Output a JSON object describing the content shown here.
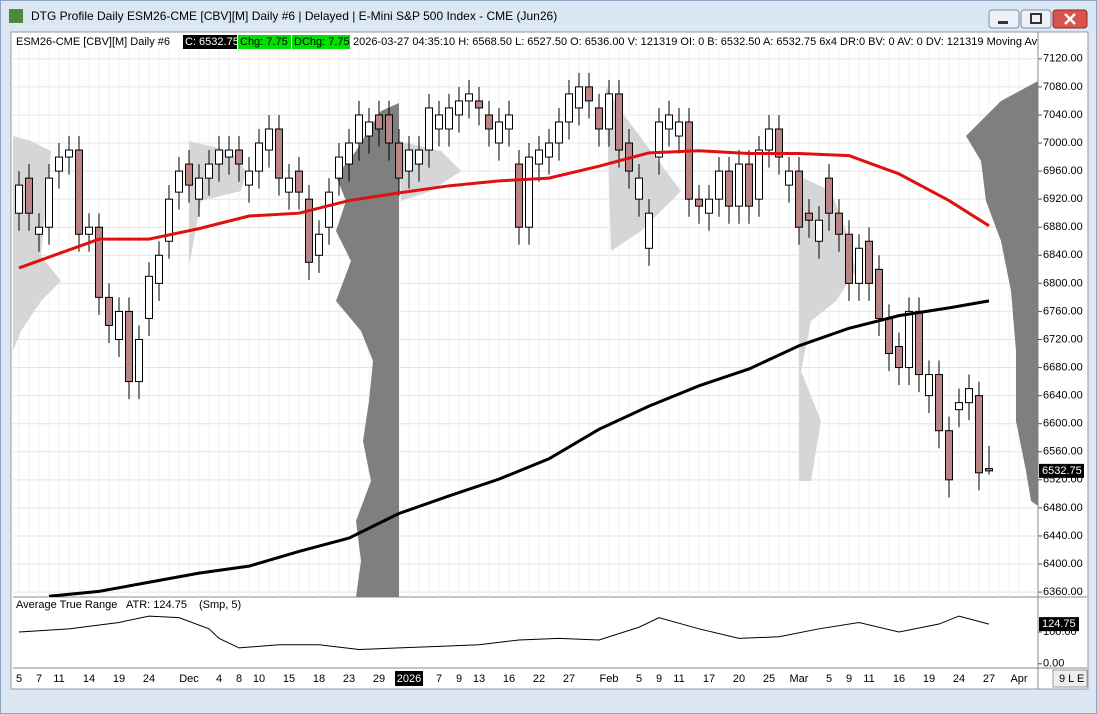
{
  "window": {
    "title": "DTG Profile Daily ESM26-CME [CBV][M]  Daily #6 | Delayed | E-Mini S&P 500 Index - CME (Jun26)",
    "status": "9 L E"
  },
  "header": {
    "symbol": "ESM26-CME [CBV][M]  Daily #6",
    "close": "C: 6532.75",
    "chg": "Chg: 7.75",
    "dchg": "DChg: 7.75",
    "details": "2026-03-27 04:35:10 H: 6568.50 L: 6527.50 O: 6536.00 V: 121319 OI: 0 B: 6532.50 A: 6532.75 6x4 DR:0 BV: 0 AV: 0 DV: 121319 Moving Av"
  },
  "chart_data": {
    "type": "candlestick",
    "categories": [
      "5",
      null,
      "7",
      null,
      "11",
      null,
      null,
      "14",
      null,
      null,
      "19",
      null,
      null,
      "24",
      null,
      null,
      null,
      "Dec",
      null,
      null,
      "4",
      null,
      "8",
      null,
      "10",
      null,
      null,
      "15",
      null,
      null,
      "18",
      null,
      null,
      "23",
      null,
      null,
      "29",
      null,
      null,
      "2026",
      null,
      null,
      "7",
      null,
      "9",
      null,
      "13",
      null,
      null,
      "16",
      null,
      null,
      "22",
      null,
      null,
      "27",
      null,
      null,
      null,
      "Feb",
      null,
      null,
      "5",
      null,
      "9",
      null,
      "11",
      null,
      null,
      "17",
      null,
      null,
      "20",
      null,
      null,
      "25",
      null,
      null,
      "Mar",
      null,
      null,
      "5",
      null,
      "9",
      null,
      "11",
      null,
      null,
      "16",
      null,
      null,
      "19",
      null,
      null,
      "24",
      null,
      null,
      "27",
      null,
      null,
      "Apr"
    ],
    "open": [
      6900,
      6950,
      6870,
      6880,
      6960,
      6980,
      6990,
      6870,
      6880,
      6780,
      6720,
      6760,
      6660,
      6750,
      6800,
      6860,
      6930,
      6970,
      6920,
      6950,
      6970,
      6980,
      6990,
      6940,
      6960,
      6990,
      7020,
      6930,
      6960,
      6920,
      6840,
      6880,
      6950,
      6970,
      7000,
      7010,
      7040,
      7040,
      7000,
      6960,
      6970,
      6990,
      7020,
      7020,
      7040,
      7060,
      7060,
      7040,
      7000,
      7020,
      6970,
      6880,
      6970,
      6980,
      7000,
      7030,
      7050,
      7080,
      7050,
      7020,
      7070,
      7000,
      6920,
      6850,
      6980,
      7020,
      7010,
      7030,
      6920,
      6900,
      6920,
      6960,
      6910,
      6970,
      6920,
      6990,
      7020,
      6940,
      6960,
      6900,
      6860,
      6950,
      6900,
      6870,
      6800,
      6860,
      6820,
      6750,
      6710,
      6680,
      6760,
      6640,
      6670,
      6590,
      6620,
      6630,
      6640,
      6536,
      null,
      null,
      null
    ],
    "high": [
      6960,
      6970,
      6900,
      6970,
      7000,
      7010,
      7010,
      6900,
      6900,
      6800,
      6780,
      6780,
      6740,
      6830,
      6860,
      6940,
      6980,
      6990,
      6970,
      6990,
      7010,
      7010,
      7010,
      6980,
      7020,
      7040,
      7040,
      6970,
      6980,
      6940,
      6890,
      6950,
      7000,
      7020,
      7060,
      7050,
      7060,
      7060,
      7020,
      7010,
      7010,
      7070,
      7060,
      7070,
      7080,
      7090,
      7080,
      7060,
      7050,
      7060,
      6990,
      7000,
      7010,
      7020,
      7050,
      7090,
      7100,
      7100,
      7070,
      7090,
      7090,
      7020,
      6970,
      6920,
      7050,
      7060,
      7050,
      7050,
      6940,
      6940,
      6980,
      6980,
      6990,
      6990,
      7010,
      7040,
      7040,
      6980,
      6980,
      6920,
      6910,
      6970,
      6920,
      6890,
      6870,
      6880,
      6840,
      6770,
      6730,
      6780,
      6780,
      6690,
      6690,
      6610,
      6650,
      6670,
      6660,
      6568.5,
      null,
      null,
      null
    ],
    "low": [
      6875,
      6875,
      6845,
      6855,
      6935,
      6955,
      6845,
      6845,
      6755,
      6715,
      6695,
      6635,
      6635,
      6725,
      6775,
      6835,
      6905,
      6915,
      6895,
      6925,
      6945,
      6955,
      6945,
      6915,
      6935,
      6965,
      6925,
      6905,
      6905,
      6805,
      6815,
      6855,
      6925,
      6945,
      6975,
      6985,
      6995,
      6975,
      6925,
      6935,
      6945,
      6965,
      6995,
      6995,
      7015,
      7035,
      7025,
      6995,
      6975,
      6995,
      6855,
      6855,
      6945,
      6955,
      6975,
      7005,
      7025,
      7035,
      6995,
      6995,
      6965,
      6935,
      6895,
      6825,
      6955,
      6995,
      6985,
      6895,
      6885,
      6875,
      6895,
      6885,
      6885,
      6885,
      6895,
      6965,
      6955,
      6915,
      6855,
      6865,
      6835,
      6875,
      6845,
      6775,
      6775,
      6775,
      6725,
      6675,
      6655,
      6655,
      6645,
      6615,
      6565,
      6495,
      6595,
      6605,
      6505,
      6527.5,
      null,
      null,
      null
    ],
    "close": [
      6940,
      6900,
      6880,
      6950,
      6980,
      6990,
      6870,
      6880,
      6780,
      6740,
      6760,
      6660,
      6720,
      6810,
      6840,
      6920,
      6960,
      6940,
      6950,
      6970,
      6990,
      6990,
      6970,
      6960,
      7000,
      7020,
      6950,
      6950,
      6930,
      6830,
      6870,
      6930,
      6980,
      7000,
      7040,
      7030,
      7020,
      7000,
      6950,
      6990,
      6990,
      7050,
      7040,
      7050,
      7060,
      7070,
      7050,
      7020,
      7030,
      7040,
      6880,
      6980,
      6990,
      7000,
      7030,
      7070,
      7080,
      7060,
      7020,
      7070,
      6990,
      6960,
      6950,
      6900,
      7030,
      7040,
      7030,
      6920,
      6910,
      6920,
      6960,
      6910,
      6970,
      6910,
      6990,
      7020,
      6980,
      6960,
      6880,
      6890,
      6890,
      6900,
      6870,
      6800,
      6850,
      6800,
      6750,
      6700,
      6680,
      6760,
      6670,
      6670,
      6590,
      6520,
      6630,
      6650,
      6530,
      6532.75,
      null,
      null,
      null
    ],
    "up_color": "#ffffff",
    "down_color": "#b98585",
    "series": [
      {
        "color": "#e01010",
        "x": [
          0,
          8,
          13,
          18,
          23,
          28,
          33,
          38,
          43,
          48,
          53,
          58,
          63,
          68,
          73,
          78,
          83,
          88,
          93,
          97
        ],
        "values": [
          6822,
          6863,
          6863,
          6878,
          6896,
          6900,
          6918,
          6929,
          6939,
          6946,
          6950,
          6967,
          6986,
          6989,
          6985,
          6985,
          6982,
          6956,
          6918,
          6882
        ]
      },
      {
        "color": "#000000",
        "x": [
          3,
          8,
          13,
          18,
          23,
          28,
          33,
          38,
          43,
          48,
          53,
          58,
          63,
          68,
          73,
          78,
          83,
          88,
          93,
          97
        ],
        "values": [
          6354,
          6361,
          6374,
          6387,
          6397,
          6418,
          6437,
          6472,
          6497,
          6521,
          6550,
          6592,
          6625,
          6654,
          6678,
          6711,
          6736,
          6754,
          6765,
          6775
        ]
      }
    ],
    "ylim": [
      6353,
      7134
    ],
    "yticks": [
      {
        "value": 7120,
        "label": "7120.00"
      },
      {
        "value": 7080,
        "label": "7080.00"
      },
      {
        "value": 7040,
        "label": "7040.00"
      },
      {
        "value": 7000,
        "label": "7000.00"
      },
      {
        "value": 6960,
        "label": "6960.00"
      },
      {
        "value": 6920,
        "label": "6920.00"
      },
      {
        "value": 6880,
        "label": "6880.00"
      },
      {
        "value": 6840,
        "label": "6840.00"
      },
      {
        "value": 6800,
        "label": "6800.00"
      },
      {
        "value": 6760,
        "label": "6760.00"
      },
      {
        "value": 6720,
        "label": "6720.00"
      },
      {
        "value": 6680,
        "label": "6680.00"
      },
      {
        "value": 6640,
        "label": "6640.00"
      },
      {
        "value": 6600,
        "label": "6600.00"
      },
      {
        "value": 6560,
        "label": "6560.00"
      },
      {
        "value": 6520,
        "label": "6520.00"
      },
      {
        "value": 6480,
        "label": "6480.00"
      },
      {
        "value": 6440,
        "label": "6440.00"
      },
      {
        "value": 6400,
        "label": "6400.00"
      },
      {
        "value": 6360,
        "label": "6360.00"
      }
    ],
    "grid": true,
    "atr": {
      "title": "Average True Range",
      "last_label": "ATR: 124.75",
      "params": "(Smp, 5)",
      "last": 124.75,
      "color": "#000000",
      "x": [
        0,
        5,
        10,
        13,
        16,
        19,
        20,
        22,
        26,
        30,
        34,
        38,
        42,
        46,
        50,
        54,
        58,
        62,
        64,
        68,
        72,
        76,
        80,
        84,
        88,
        92,
        94,
        97
      ],
      "values": [
        100,
        110,
        130,
        150,
        145,
        110,
        80,
        50,
        60,
        60,
        45,
        50,
        55,
        60,
        75,
        80,
        75,
        115,
        145,
        110,
        80,
        85,
        110,
        130,
        100,
        125,
        150,
        124.75
      ],
      "ylim": [
        -10,
        210
      ],
      "yticks": [
        {
          "value": 0,
          "label": "0.00"
        },
        {
          "value": 100,
          "label": "100.00"
        }
      ]
    }
  }
}
